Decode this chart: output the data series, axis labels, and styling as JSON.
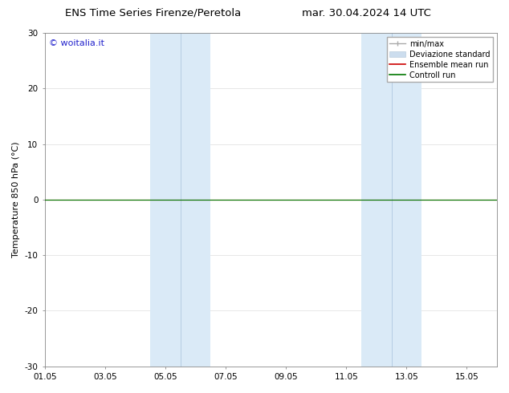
{
  "title_left": "ENS Time Series Firenze/Peretola",
  "title_right": "mar. 30.04.2024 14 UTC",
  "ylabel": "Temperature 850 hPa (°C)",
  "ylim": [
    -30,
    30
  ],
  "yticks": [
    -30,
    -20,
    -10,
    0,
    10,
    20,
    30
  ],
  "xtick_labels": [
    "01.05",
    "03.05",
    "05.05",
    "07.05",
    "09.05",
    "11.05",
    "13.05",
    "15.05"
  ],
  "xtick_positions": [
    0,
    2,
    4,
    6,
    8,
    10,
    12,
    14
  ],
  "x_min": 0,
  "x_max": 15,
  "shaded_bands": [
    {
      "x_start": 3.5,
      "x_end": 5.5
    },
    {
      "x_start": 10.5,
      "x_end": 12.5
    }
  ],
  "band_color": "#daeaf7",
  "band_inner_line_color": "#b0c8e0",
  "zero_line_y": 0,
  "control_run_color": "#007700",
  "ensemble_mean_color": "#cc0000",
  "legend_labels": [
    "min/max",
    "Deviazione standard",
    "Ensemble mean run",
    "Controll run"
  ],
  "minmax_color": "#aaaaaa",
  "devstd_color": "#ccddee",
  "devstd_edge_color": "#bbccdd",
  "watermark_text": "© woitalia.it",
  "watermark_color": "#2222cc",
  "background_color": "#ffffff",
  "grid_color": "#dddddd",
  "title_fontsize": 9.5,
  "axis_fontsize": 8,
  "tick_fontsize": 7.5,
  "legend_fontsize": 7,
  "watermark_fontsize": 8
}
